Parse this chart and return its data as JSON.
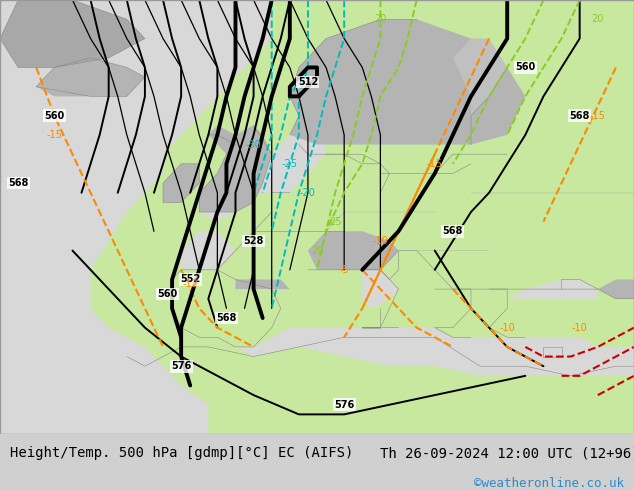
{
  "title_left": "Height/Temp. 500 hPa [gdmp][°C] EC (AIFS)",
  "title_right": "Th 26-09-2024 12:00 UTC (12+96)",
  "watermark": "©weatheronline.co.uk",
  "footer_bg": "#d0d0d0",
  "watermark_color": "#3388cc",
  "map_ocean": "#d8d8d8",
  "map_land_green": "#c8e8a0",
  "map_land_gray": "#b4b4b4",
  "map_borders": "#888888",
  "height_color": "#000000",
  "temp_cyan": "#00bbbb",
  "temp_green": "#88cc22",
  "temp_orange": "#ff8800",
  "temp_red": "#cc0000",
  "font_footer": 10,
  "font_label": 8,
  "xlim": [
    -28,
    42
  ],
  "ylim": [
    27,
    72
  ]
}
